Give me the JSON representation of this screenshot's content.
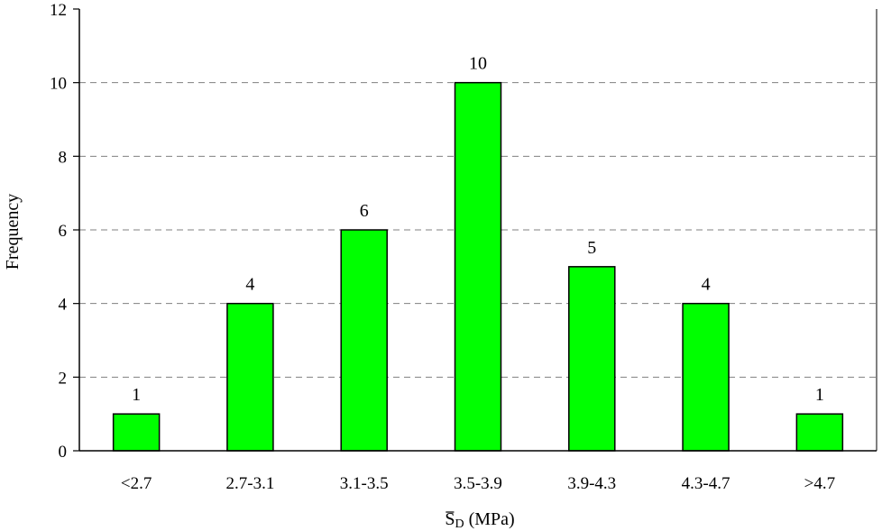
{
  "chart_data": {
    "type": "bar",
    "categories": [
      "<2.7",
      "2.7-3.1",
      "3.1-3.5",
      "3.5-3.9",
      "3.9-4.3",
      "4.3-4.7",
      ">4.7"
    ],
    "values": [
      1,
      4,
      6,
      10,
      5,
      4,
      1
    ],
    "data_labels": [
      "1",
      "4",
      "6",
      "10",
      "5",
      "4",
      "1"
    ],
    "title": "",
    "xlabel": {
      "symbol": "S",
      "subscript": "D",
      "unit": "(MPa)"
    },
    "ylabel": "Frequency",
    "ylim": [
      0,
      12
    ],
    "yticks": [
      "0",
      "2",
      "4",
      "6",
      "8",
      "10",
      "12"
    ],
    "grid": "horizontal dashed",
    "legend": "none",
    "colors": {
      "bar_fill": "#00FF00",
      "bar_stroke": "#000000",
      "grid": "#808080"
    }
  }
}
